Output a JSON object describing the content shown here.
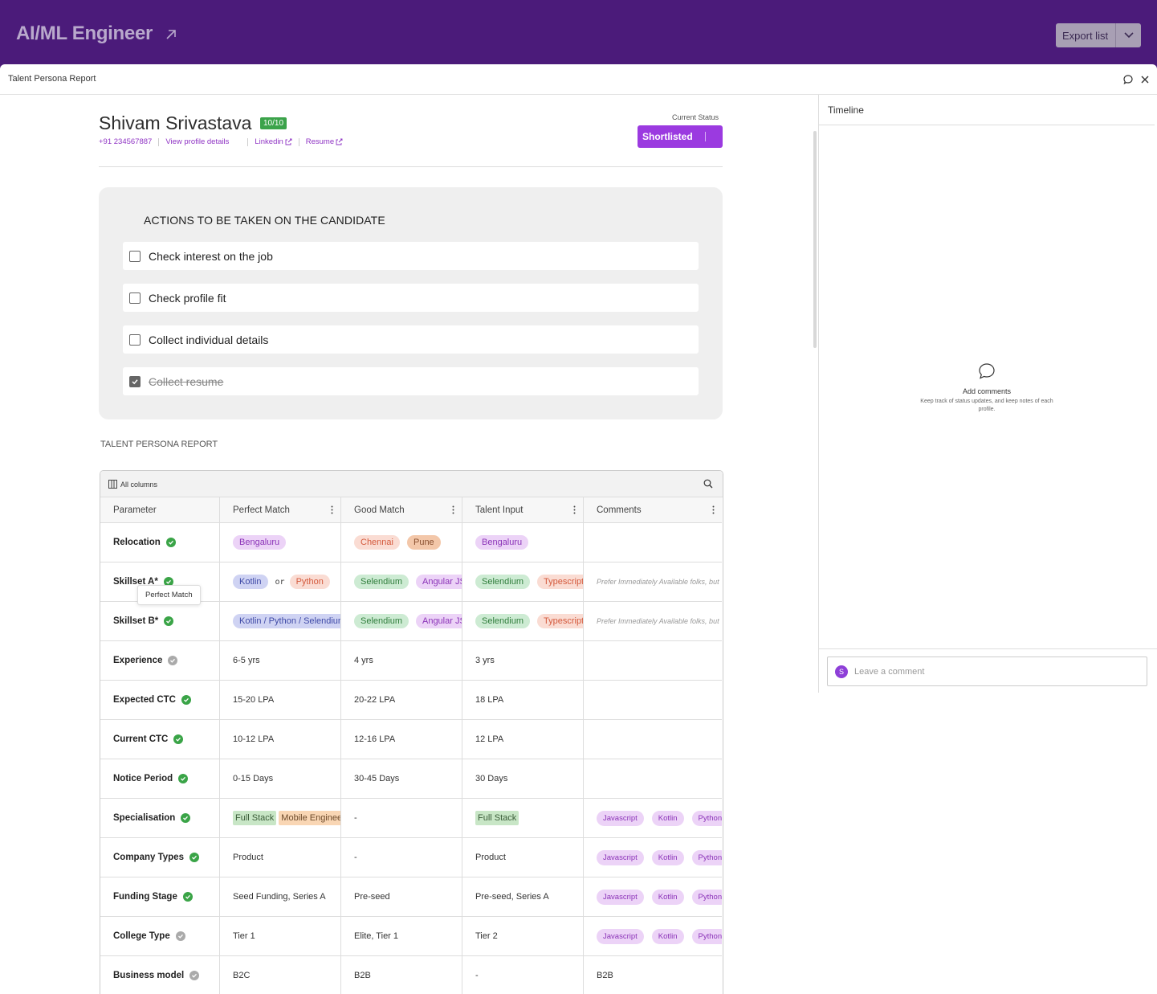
{
  "header": {
    "job_title": "AI/ML Engineer",
    "export_label": "Export list"
  },
  "panel": {
    "title": "Talent Persona Report"
  },
  "candidate": {
    "name": "Shivam Srivastava",
    "score": "10/10",
    "phone": "+91 234567887",
    "view_profile": "View profile details",
    "linkedin": "Linkedin",
    "resume": "Resume",
    "status_caption": "Current Status",
    "status": "Shortlisted"
  },
  "actions": {
    "title": "ACTIONS TO BE TAKEN ON THE CANDIDATE",
    "items": [
      {
        "label": "Check interest on the job",
        "checked": false
      },
      {
        "label": "Check profile fit",
        "checked": false
      },
      {
        "label": "Collect individual details",
        "checked": false
      },
      {
        "label": "Collect resume",
        "checked": true
      }
    ]
  },
  "report": {
    "section_label": "TALENT PERSONA REPORT",
    "toolbar_columns": "All columns",
    "tooltip": "Perfect Match",
    "headers": [
      "Parameter",
      "Perfect Match",
      "Good Match",
      "Talent Input",
      "Comments"
    ],
    "rows": [
      {
        "param": "Relocation",
        "match": true,
        "perfect": [
          {
            "text": "Bengaluru",
            "style": "purple"
          }
        ],
        "good": [
          {
            "text": "Chennai",
            "style": "red"
          },
          {
            "text": "Pune",
            "style": "orange"
          }
        ],
        "talent": [
          {
            "text": "Bengaluru",
            "style": "purple"
          }
        ],
        "comment": ""
      },
      {
        "param": "Skillset A*",
        "match": true,
        "perfect": [
          {
            "text": "Kotlin",
            "style": "blue"
          },
          {
            "text": "or",
            "style": "or"
          },
          {
            "text": "Python",
            "style": "red"
          }
        ],
        "good": [
          {
            "text": "Selendium",
            "style": "green"
          },
          {
            "text": "Angular JS",
            "style": "purple"
          }
        ],
        "talent": [
          {
            "text": "Selendium",
            "style": "green"
          },
          {
            "text": "Typescript",
            "style": "red"
          }
        ],
        "comment": "Prefer Immediately Available folks, but"
      },
      {
        "param": "Skillset B*",
        "match": true,
        "perfect": [
          {
            "text": "Kotlin / Python / Selendium",
            "style": "blue"
          }
        ],
        "good": [
          {
            "text": "Selendium",
            "style": "green"
          },
          {
            "text": "Angular JS",
            "style": "purple"
          }
        ],
        "talent": [
          {
            "text": "Selendium",
            "style": "green"
          },
          {
            "text": "Typescript",
            "style": "red"
          }
        ],
        "comment": "Prefer Immediately Available folks, but"
      },
      {
        "param": "Experience",
        "match": false,
        "perfect": "6-5 yrs",
        "good": "4 yrs",
        "talent": "3 yrs",
        "comment": ""
      },
      {
        "param": "Expected CTC",
        "match": true,
        "perfect": "15-20 LPA",
        "good": "20-22 LPA",
        "talent": "18 LPA",
        "comment": ""
      },
      {
        "param": "Current CTC",
        "match": true,
        "perfect": "10-12 LPA",
        "good": "12-16 LPA",
        "talent": "12 LPA",
        "comment": ""
      },
      {
        "param": "Notice Period",
        "match": true,
        "perfect": "0-15 Days",
        "good": "30-45 Days",
        "talent": "30 Days",
        "comment": ""
      },
      {
        "param": "Specialisation",
        "match": true,
        "perfect": [
          {
            "text": "Full Stack",
            "style": "sq-green"
          },
          {
            "text": "Mobile Engineer",
            "style": "sq-orange"
          }
        ],
        "good": "-",
        "talent": [
          {
            "text": "Full Stack",
            "style": "sq-green"
          }
        ],
        "comment": [
          {
            "text": "Javascript",
            "style": "mini"
          },
          {
            "text": "Kotlin",
            "style": "mini"
          },
          {
            "text": "Python",
            "style": "mini"
          }
        ]
      },
      {
        "param": "Company Types",
        "match": true,
        "perfect": "Product",
        "good": "-",
        "talent": "Product",
        "comment": [
          {
            "text": "Javascript",
            "style": "mini"
          },
          {
            "text": "Kotlin",
            "style": "mini"
          },
          {
            "text": "Python",
            "style": "mini"
          }
        ]
      },
      {
        "param": "Funding Stage",
        "match": true,
        "perfect": "Seed Funding, Series A",
        "good": "Pre-seed",
        "talent": "Pre-seed, Series A",
        "comment": [
          {
            "text": "Javascript",
            "style": "mini"
          },
          {
            "text": "Kotlin",
            "style": "mini"
          },
          {
            "text": "Python",
            "style": "mini"
          }
        ]
      },
      {
        "param": "College Type",
        "match": false,
        "perfect": "Tier 1",
        "good": "Elite, Tier 1",
        "talent": "Tier 2",
        "comment": [
          {
            "text": "Javascript",
            "style": "mini"
          },
          {
            "text": "Kotlin",
            "style": "mini"
          },
          {
            "text": "Python",
            "style": "mini"
          }
        ]
      },
      {
        "param": "Business model",
        "match": false,
        "perfect": "B2C",
        "good": "B2B",
        "talent": "-",
        "comment": "B2B"
      }
    ]
  },
  "timeline": {
    "title": "Timeline",
    "empty_title": "Add comments",
    "empty_desc": "Keep track of status updates, and keep notes of each profile.",
    "avatar_letter": "S",
    "comment_placeholder": "Leave a comment"
  }
}
